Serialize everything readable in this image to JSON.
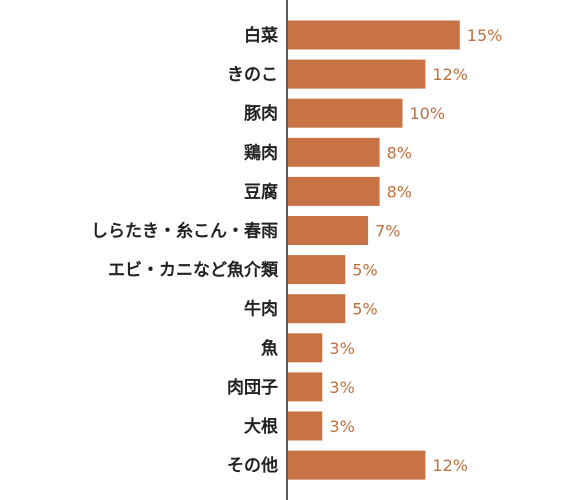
{
  "chart_data": {
    "type": "bar",
    "orientation": "horizontal",
    "title": "",
    "xlabel": "",
    "ylabel": "",
    "categories": [
      "白菜",
      "きのこ",
      "豚肉",
      "鶏肉",
      "豆腐",
      "しらたき・糸こん・春雨",
      "エビ・カニなど魚介類",
      "牛肉",
      "魚",
      "肉団子",
      "大根",
      "その他"
    ],
    "values": [
      15,
      12,
      10,
      8,
      8,
      7,
      5,
      5,
      3,
      3,
      3,
      12
    ],
    "value_labels": [
      "15%",
      "12%",
      "10%",
      "8%",
      "8%",
      "7%",
      "5%",
      "5%",
      "3%",
      "3%",
      "3%",
      "12%"
    ],
    "unit": "%",
    "xlim": [
      0,
      20
    ],
    "grid": false,
    "legend": "none",
    "bar_color": "#c87345",
    "value_label_color": "#c0703f",
    "axis_color": "#222222"
  }
}
